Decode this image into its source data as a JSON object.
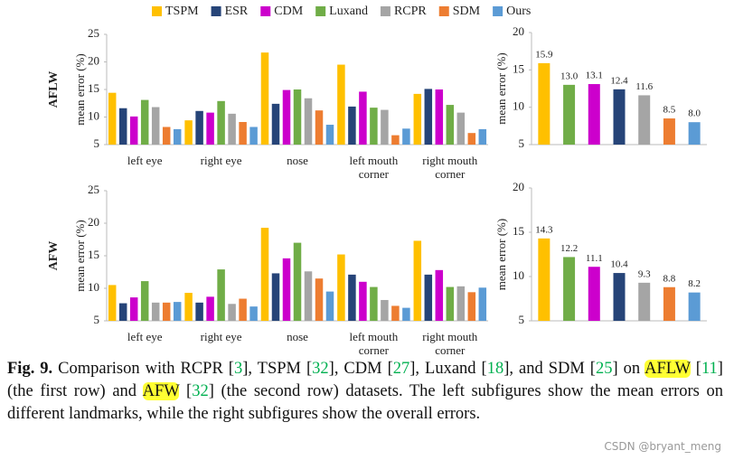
{
  "chart_data": [
    {
      "type": "bar",
      "row_label": "AFLW",
      "ylabel": "mean error (%)",
      "legend": "top",
      "categories": [
        "left eye",
        "right eye",
        "nose",
        "left mouth corner",
        "right mouth corner"
      ],
      "series": [
        {
          "name": "TSPM",
          "color": "#ffc000",
          "values": [
            14.4,
            9.4,
            21.7,
            19.5,
            14.2
          ]
        },
        {
          "name": "ESR",
          "color": "#264478",
          "values": [
            11.6,
            11.1,
            12.4,
            11.9,
            15.1
          ]
        },
        {
          "name": "CDM",
          "color": "#cc00cc",
          "values": [
            10.1,
            10.8,
            14.9,
            14.6,
            15.0
          ]
        },
        {
          "name": "Luxand",
          "color": "#70ad47",
          "values": [
            13.1,
            12.9,
            15.0,
            11.7,
            12.2
          ]
        },
        {
          "name": "RCPR",
          "color": "#a5a5a5",
          "values": [
            11.8,
            10.6,
            13.4,
            11.3,
            10.8
          ]
        },
        {
          "name": "SDM",
          "color": "#ed7d31",
          "values": [
            8.2,
            9.1,
            11.2,
            6.7,
            7.1
          ]
        },
        {
          "name": "Ours",
          "color": "#5b9bd5",
          "values": [
            7.8,
            8.2,
            8.6,
            7.9,
            7.8
          ]
        }
      ],
      "ylim": [
        5,
        25
      ],
      "yticks": [
        5,
        10,
        15,
        20,
        25
      ]
    },
    {
      "type": "bar",
      "ylabel": "mean error (%)",
      "categories": [
        null,
        null,
        null,
        null,
        null,
        null,
        null
      ],
      "values": [
        15.9,
        13.0,
        13.1,
        12.4,
        11.6,
        8.5,
        8.0
      ],
      "value_labels": [
        "15.9",
        "13.0",
        "13.1",
        "12.4",
        "11.6",
        "8.5",
        "8.0"
      ],
      "colors": [
        "#ffc000",
        "#70ad47",
        "#cc00cc",
        "#264478",
        "#a5a5a5",
        "#ed7d31",
        "#5b9bd5"
      ],
      "ylim": [
        5,
        20
      ],
      "yticks": [
        5,
        10,
        15,
        20
      ]
    },
    {
      "type": "bar",
      "row_label": "AFW",
      "ylabel": "mean error (%)",
      "categories": [
        "left eye",
        "right eye",
        "nose",
        "left mouth corner",
        "right mouth corner"
      ],
      "series": [
        {
          "color": "#ffc000",
          "values": [
            10.5,
            9.3,
            19.3,
            15.2,
            17.3
          ]
        },
        {
          "color": "#264478",
          "values": [
            7.7,
            7.8,
            12.3,
            12.1,
            12.1
          ]
        },
        {
          "color": "#cc00cc",
          "values": [
            8.6,
            8.7,
            14.6,
            11.0,
            12.8
          ]
        },
        {
          "color": "#70ad47",
          "values": [
            11.1,
            12.9,
            17.0,
            10.2,
            10.2
          ]
        },
        {
          "color": "#a5a5a5",
          "values": [
            7.8,
            7.6,
            12.6,
            8.2,
            10.3
          ]
        },
        {
          "color": "#ed7d31",
          "values": [
            7.8,
            8.4,
            11.5,
            7.3,
            9.4
          ]
        },
        {
          "color": "#5b9bd5",
          "values": [
            7.9,
            7.2,
            9.5,
            7.0,
            10.1
          ]
        }
      ],
      "ylim": [
        5,
        25
      ],
      "yticks": [
        5,
        10,
        15,
        20,
        25
      ]
    },
    {
      "type": "bar",
      "ylabel": "mean error (%)",
      "categories": [
        null,
        null,
        null,
        null,
        null,
        null,
        null
      ],
      "values": [
        14.3,
        12.2,
        11.1,
        10.4,
        9.3,
        8.8,
        8.2
      ],
      "value_labels": [
        "14.3",
        "12.2",
        "11.1",
        "10.4",
        "9.3",
        "8.8",
        "8.2"
      ],
      "colors": [
        "#ffc000",
        "#70ad47",
        "#cc00cc",
        "#264478",
        "#a5a5a5",
        "#ed7d31",
        "#5b9bd5"
      ],
      "ylim": [
        5,
        20
      ],
      "yticks": [
        5,
        10,
        15,
        20
      ]
    }
  ],
  "caption": {
    "label": "Fig. 9.",
    "segments": [
      {
        "text": " Comparison with RCPR [",
        "kind": "plain"
      },
      {
        "text": "3",
        "kind": "ref"
      },
      {
        "text": "], TSPM [",
        "kind": "plain"
      },
      {
        "text": "32",
        "kind": "ref"
      },
      {
        "text": "], CDM [",
        "kind": "plain"
      },
      {
        "text": "27",
        "kind": "ref"
      },
      {
        "text": "], Luxand [",
        "kind": "plain"
      },
      {
        "text": "18",
        "kind": "ref"
      },
      {
        "text": "], and SDM [",
        "kind": "plain"
      },
      {
        "text": "25",
        "kind": "ref"
      },
      {
        "text": "] on ",
        "kind": "plain"
      },
      {
        "text": "AFLW",
        "kind": "highlight"
      },
      {
        "text": " [",
        "kind": "plain"
      },
      {
        "text": "11",
        "kind": "ref"
      },
      {
        "text": "] (the first row) and ",
        "kind": "plain"
      },
      {
        "text": "AFW",
        "kind": "highlight"
      },
      {
        "text": " [",
        "kind": "plain"
      },
      {
        "text": "32",
        "kind": "ref"
      },
      {
        "text": "] (the second row) datasets. The left subfigures show the mean errors on different landmarks, while the right subfigures show the overall errors.",
        "kind": "plain"
      }
    ]
  },
  "watermark": "CSDN @bryant_meng"
}
